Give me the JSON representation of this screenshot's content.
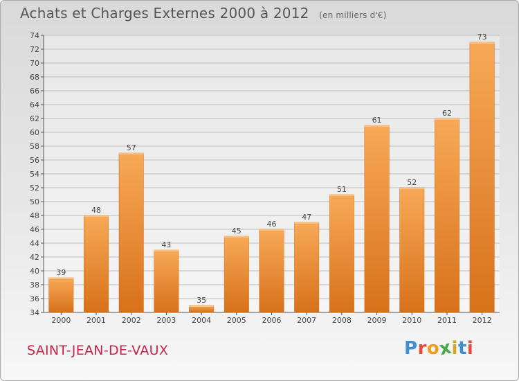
{
  "header": {
    "title": "Achats et Charges Externes 2000 à 2012",
    "subtitle": "(en milliers d'€)"
  },
  "commune": "SAINT-JEAN-DE-VAUX",
  "logo": {
    "text": "Proxiti",
    "letter_colors": [
      "#3f8fd2",
      "#e34b3c",
      "#f39a1f",
      "#4aa84a",
      "#d8a51e",
      "#3f8fd2",
      "#e34b3c"
    ]
  },
  "chart_data": {
    "type": "bar",
    "categories": [
      "2000",
      "2001",
      "2002",
      "2003",
      "2004",
      "2005",
      "2006",
      "2007",
      "2008",
      "2009",
      "2010",
      "2011",
      "2012"
    ],
    "values": [
      39,
      48,
      57,
      43,
      35,
      45,
      46,
      47,
      51,
      61,
      52,
      62,
      73
    ],
    "ylim": [
      34,
      74
    ],
    "yticks": [
      34,
      36,
      38,
      40,
      42,
      44,
      46,
      48,
      50,
      52,
      54,
      56,
      58,
      60,
      62,
      64,
      66,
      68,
      70,
      72,
      74
    ],
    "grid": true,
    "bar_color": "#f0922e",
    "legend": "none"
  }
}
